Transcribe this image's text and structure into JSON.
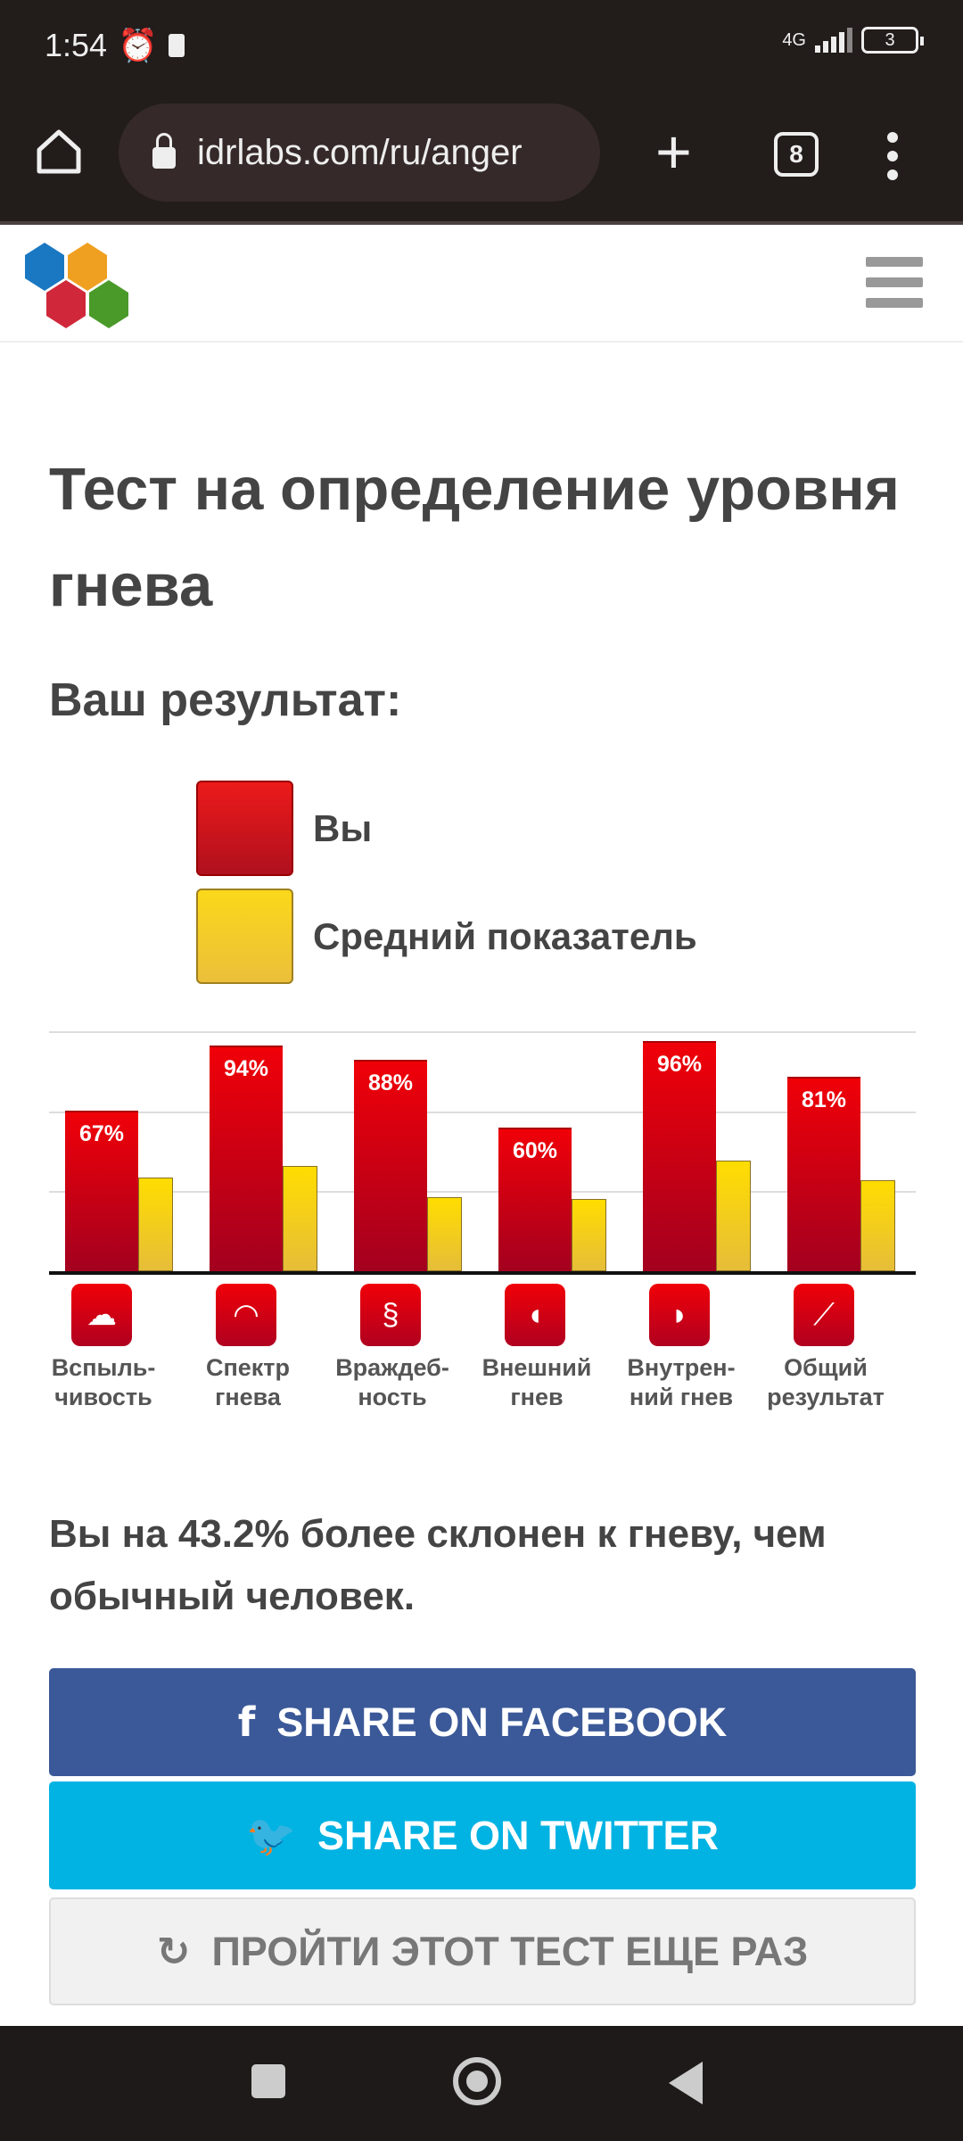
{
  "status": {
    "time": "1:54",
    "network": "4G",
    "battery": "3"
  },
  "browser": {
    "url": "idrlabs.com/ru/anger",
    "tab_count": "8"
  },
  "page": {
    "title": "Тест на определение уровня гнева",
    "result_heading": "Ваш результат:",
    "legend": [
      {
        "label": "Вы",
        "color": "#e0000d"
      },
      {
        "label": "Средний показатель",
        "color": "#f5cd1c"
      }
    ],
    "summary": "Вы на 43.2% более склонен к гневу, чем обычный человек.",
    "buttons": {
      "facebook": "SHARE ON FACEBOOK",
      "twitter": "SHARE ON TWITTER",
      "retry": "ПРОЙТИ ЭТОТ ТЕСТ ЕЩЕ РАЗ"
    }
  },
  "chart_data": {
    "type": "bar",
    "categories": [
      "Вспыль-\nчивость",
      "Спектр\nгнева",
      "Враждеб-\nность",
      "Внешний\nгнев",
      "Внутрен-\nний гнев",
      "Общий\nрезультат"
    ],
    "icons": [
      "storm-cloud-icon",
      "fan-spectrum-icon",
      "snake-icon",
      "speaking-head-out-icon",
      "speaking-head-in-icon",
      "line-graph-icon"
    ],
    "series": [
      {
        "name": "Вы",
        "values": [
          67,
          94,
          88,
          60,
          96,
          81
        ],
        "labels": [
          "67%",
          "94%",
          "88%",
          "60%",
          "96%",
          "81%"
        ]
      },
      {
        "name": "Средний показатель",
        "values": [
          39,
          44,
          31,
          30,
          46,
          38
        ]
      }
    ],
    "ylim": [
      0,
      100
    ],
    "grid": true
  }
}
